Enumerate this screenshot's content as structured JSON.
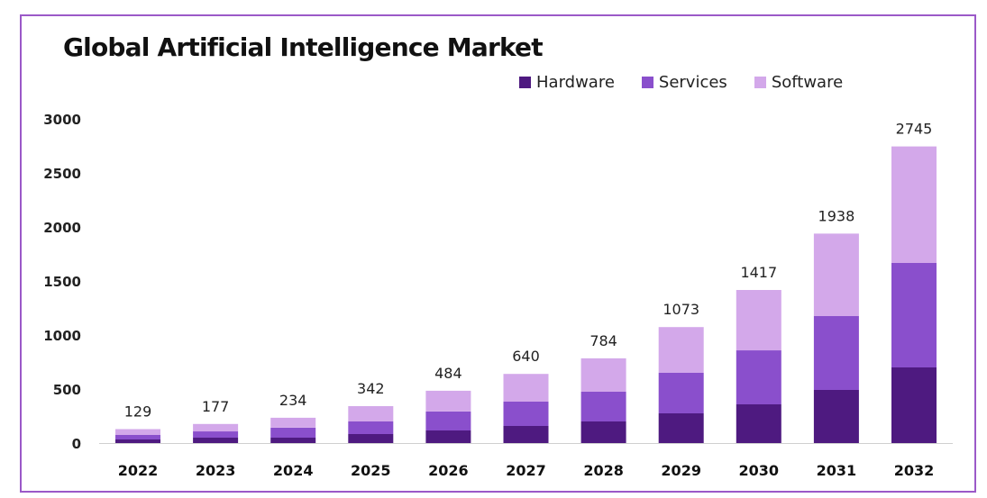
{
  "chart_data": {
    "type": "bar",
    "stacked": true,
    "title": "Global Artificial Intelligence Market",
    "xlabel": "",
    "ylabel": "",
    "ylim": [
      0,
      3000
    ],
    "yticks": [
      0,
      500,
      1000,
      1500,
      2000,
      2500,
      3000
    ],
    "grid": false,
    "legend_position": "top-right",
    "categories": [
      "2022",
      "2023",
      "2024",
      "2025",
      "2026",
      "2027",
      "2028",
      "2029",
      "2030",
      "2031",
      "2032"
    ],
    "series": [
      {
        "name": "Hardware",
        "color": "#4e1a80",
        "values": [
          33,
          50,
          50,
          83,
          117,
          158,
          200,
          275,
          358,
          492,
          700
        ]
      },
      {
        "name": "Services",
        "color": "#8a4fcc",
        "values": [
          42,
          58,
          92,
          117,
          175,
          225,
          275,
          375,
          500,
          683,
          967
        ]
      },
      {
        "name": "Software",
        "color": "#d3a8ea",
        "values": [
          54,
          69,
          92,
          142,
          192,
          257,
          309,
          423,
          559,
          763,
          1078
        ]
      }
    ],
    "totals": [
      129,
      177,
      234,
      342,
      484,
      640,
      784,
      1073,
      1417,
      1938,
      2745
    ]
  }
}
